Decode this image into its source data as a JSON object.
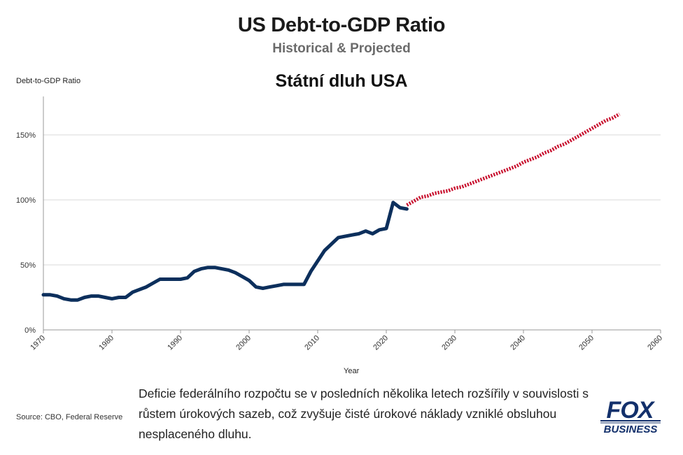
{
  "chart_data": {
    "type": "line",
    "title": "US Debt-to-GDP Ratio",
    "subtitle": "Historical & Projected",
    "overlay_title": "Státní dluh USA",
    "ylabel": "Debt-to-GDP Ratio",
    "xlabel": "Year",
    "xlim": [
      1970,
      2060
    ],
    "ylim": [
      0,
      180
    ],
    "x_ticks": [
      1970,
      1980,
      1990,
      2000,
      2010,
      2020,
      2030,
      2040,
      2050,
      2060
    ],
    "y_ticks": [
      0,
      50,
      100,
      150
    ],
    "y_tick_labels": [
      "0%",
      "50%",
      "100%",
      "150%"
    ],
    "series": [
      {
        "name": "Historical",
        "color": "#0c2f5c",
        "style": "solid",
        "x": [
          1970,
          1971,
          1972,
          1973,
          1974,
          1975,
          1976,
          1977,
          1978,
          1979,
          1980,
          1981,
          1982,
          1983,
          1984,
          1985,
          1986,
          1987,
          1988,
          1989,
          1990,
          1991,
          1992,
          1993,
          1994,
          1995,
          1996,
          1997,
          1998,
          1999,
          2000,
          2001,
          2002,
          2003,
          2004,
          2005,
          2006,
          2007,
          2008,
          2009,
          2010,
          2011,
          2012,
          2013,
          2014,
          2015,
          2016,
          2017,
          2018,
          2019,
          2020,
          2021,
          2022,
          2023
        ],
        "values": [
          27,
          27,
          26,
          24,
          23,
          23,
          25,
          26,
          26,
          25,
          24,
          25,
          25,
          29,
          31,
          33,
          36,
          39,
          39,
          39,
          39,
          40,
          45,
          47,
          48,
          48,
          47,
          46,
          44,
          41,
          38,
          33,
          32,
          33,
          34,
          35,
          35,
          35,
          35,
          45,
          53,
          61,
          66,
          71,
          72,
          73,
          74,
          76,
          74,
          77,
          78,
          98,
          94,
          93
        ]
      },
      {
        "name": "Projected",
        "color": "#c8102e",
        "style": "dotted",
        "x": [
          2023,
          2024,
          2025,
          2026,
          2027,
          2028,
          2029,
          2030,
          2031,
          2032,
          2033,
          2034,
          2035,
          2036,
          2037,
          2038,
          2039,
          2040,
          2041,
          2042,
          2043,
          2044,
          2045,
          2046,
          2047,
          2048,
          2049,
          2050,
          2051,
          2052,
          2053,
          2054
        ],
        "values": [
          96,
          99,
          102,
          103,
          105,
          106,
          107,
          109,
          110,
          112,
          114,
          116,
          118,
          120,
          122,
          124,
          126,
          129,
          131,
          133,
          136,
          138,
          141,
          143,
          146,
          149,
          152,
          155,
          158,
          161,
          163,
          166
        ]
      }
    ]
  },
  "caption": "Deficie federálního rozpočtu se v posledních několika letech rozšířily v souvislosti s růstem úrokových sazeb, což zvyšuje čisté úrokové náklady vzniklé obsluhou nesplaceného dluhu.",
  "source": "Source: CBO, Federal Reserve",
  "logo": {
    "top": "FOX",
    "bottom": "BUSINESS"
  },
  "colors": {
    "historical": "#0c2f5c",
    "projected": "#c8102e",
    "grid": "#d9d9d9",
    "axis": "#999999"
  }
}
